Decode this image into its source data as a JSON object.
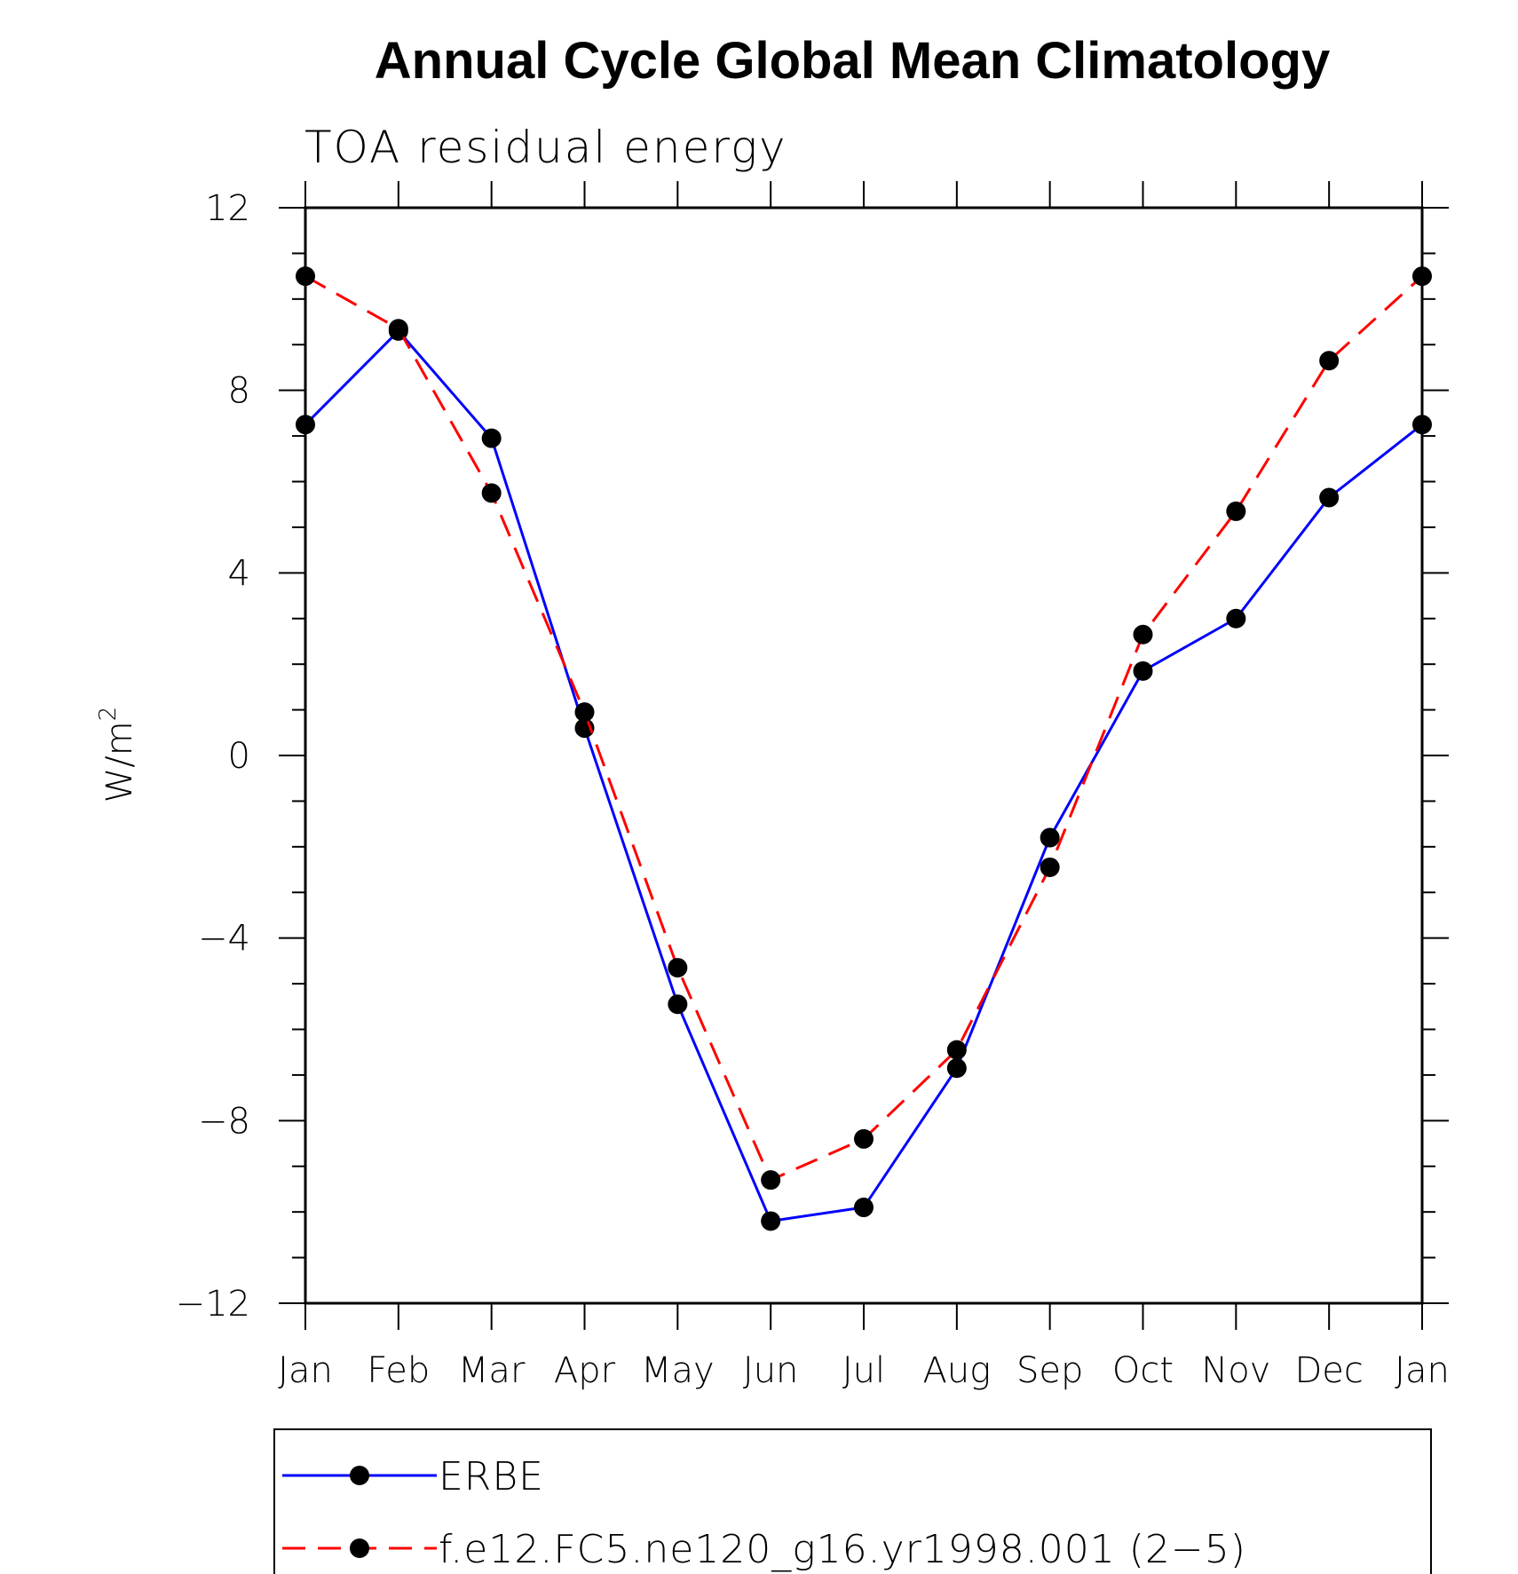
{
  "chart_data": {
    "type": "line",
    "title": "Annual Cycle Global Mean Climatology",
    "subtitle": "TOA residual energy",
    "ylabel": "W/m",
    "ylabel_superscript": "2",
    "xlabel": "",
    "categories": [
      "Jan",
      "Feb",
      "Mar",
      "Apr",
      "May",
      "Jun",
      "Jul",
      "Aug",
      "Sep",
      "Oct",
      "Nov",
      "Dec",
      "Jan"
    ],
    "ylim": [
      -12,
      12
    ],
    "yticks": [
      12,
      8,
      4,
      0,
      -4,
      -8,
      -12
    ],
    "ytick_labels": [
      "12",
      "8",
      "4",
      "0",
      "−4",
      "−8",
      "−12"
    ],
    "series": [
      {
        "name": "ERBE",
        "color": "#0000ff",
        "line_style": "solid",
        "marker": "filled-circle",
        "values": [
          7.25,
          9.3,
          6.95,
          0.6,
          -5.45,
          -10.2,
          -9.9,
          -6.85,
          -1.8,
          1.85,
          3.0,
          5.65,
          7.25
        ]
      },
      {
        "name": "f.e12.FC5.ne120_g16.yr1998.001 (2−5)",
        "color": "#ff0000",
        "line_style": "dashed",
        "marker": "filled-circle",
        "values": [
          10.5,
          9.35,
          5.75,
          0.95,
          -4.65,
          -9.3,
          -8.4,
          -6.45,
          -2.45,
          2.65,
          5.35,
          8.65,
          10.5
        ]
      }
    ],
    "grid": false,
    "legend_position": "bottom"
  }
}
